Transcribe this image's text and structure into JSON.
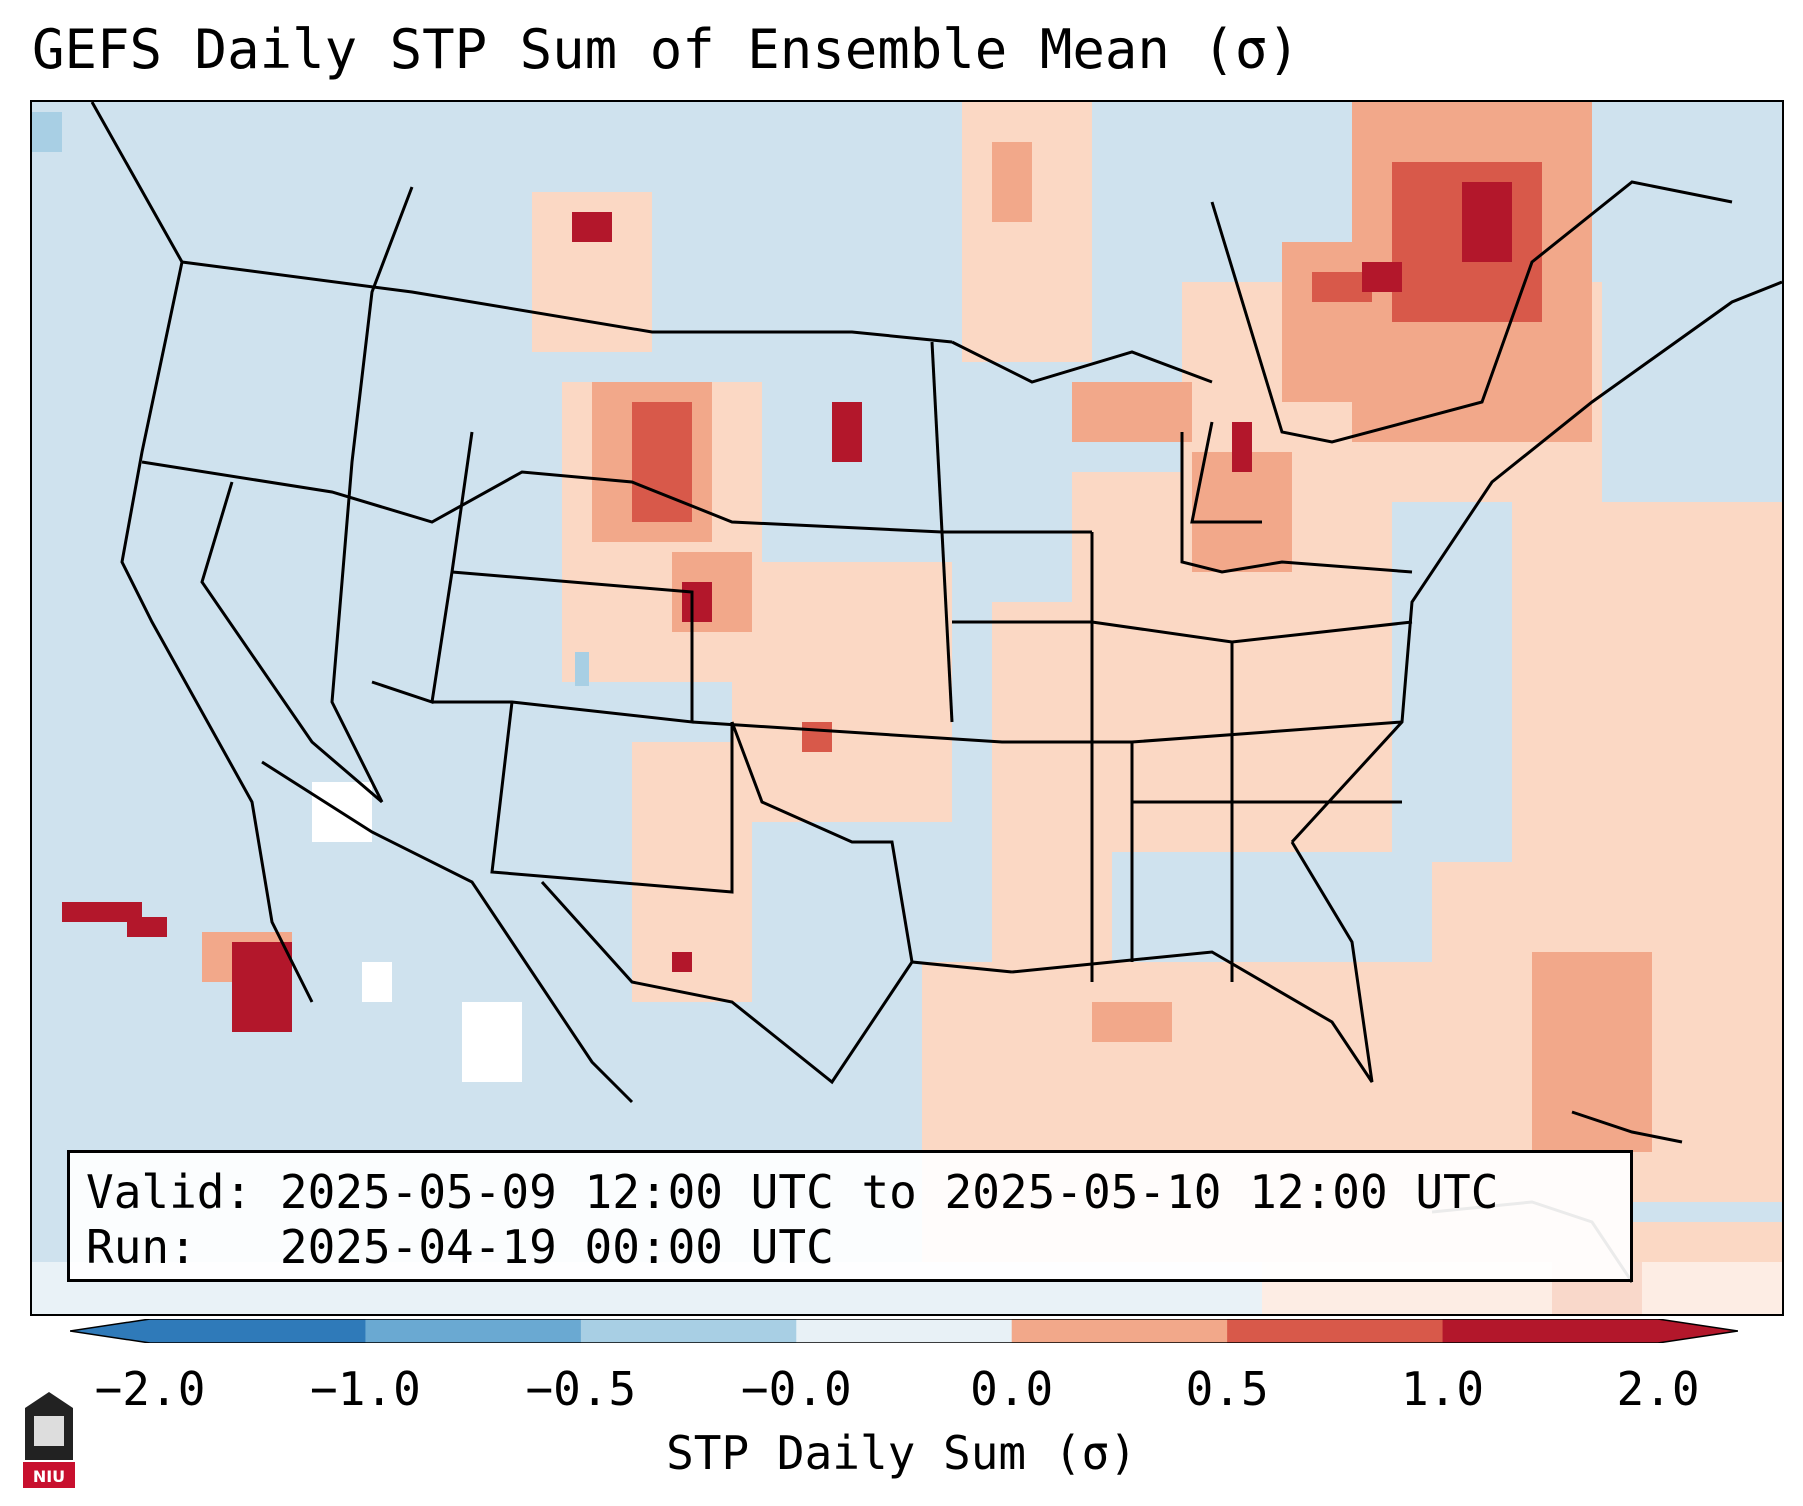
{
  "title": "GEFS Daily STP Sum of Ensemble Mean (σ)",
  "info": {
    "valid_label": "Valid:",
    "valid_value": "2025-05-09 12:00 UTC to 2025-05-10 12:00 UTC",
    "run_label": "Run:",
    "run_value": "2025-04-19 00:00 UTC"
  },
  "colorbar": {
    "label": "STP Daily Sum (σ)",
    "ticks": [
      "−2.0",
      "−1.0",
      "−0.5",
      "−0.0",
      "0.0",
      "0.5",
      "1.0",
      "2.0"
    ],
    "colors": [
      "#2f7ab9",
      "#6aa9d2",
      "#a8cfe4",
      "#e8f1f6",
      "#fbe0d0",
      "#f2a88a",
      "#d8594a",
      "#b3172b"
    ]
  },
  "map": {
    "ocean_color": "#cfe2ee",
    "border_color": "#000000"
  },
  "logo": {
    "text": "NIU",
    "color": "#c8102e"
  }
}
